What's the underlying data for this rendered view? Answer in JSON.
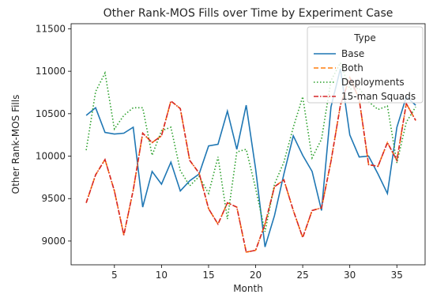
{
  "chart_data": {
    "type": "line",
    "title": "Other Rank-MOS Fills over Time by Experiment Case",
    "xlabel": "Month",
    "ylabel": "Other Rank-MOS Fills",
    "xlim": [
      0.4,
      38
    ],
    "ylim": [
      8720,
      11560
    ],
    "xticks": [
      5,
      10,
      15,
      20,
      25,
      30,
      35
    ],
    "yticks": [
      9000,
      9500,
      10000,
      10500,
      11000,
      11500
    ],
    "grid": false,
    "legend": {
      "title": "Type",
      "position": "top-right"
    },
    "x": [
      2,
      3,
      4,
      5,
      6,
      7,
      8,
      9,
      10,
      11,
      12,
      13,
      14,
      15,
      16,
      17,
      18,
      19,
      20,
      21,
      22,
      23,
      24,
      25,
      26,
      27,
      28,
      29,
      30,
      31,
      32,
      33,
      34,
      35,
      36,
      37
    ],
    "series": [
      {
        "name": "Base",
        "color": "#1f77b4",
        "dash": "solid",
        "values": [
          10480,
          10570,
          10280,
          10260,
          10270,
          10340,
          9400,
          9820,
          9670,
          9930,
          9590,
          9710,
          9790,
          10120,
          10140,
          10530,
          10080,
          10600,
          9850,
          8930,
          9300,
          9790,
          10240,
          10010,
          9820,
          9360,
          10580,
          11030,
          10250,
          9990,
          10000,
          9790,
          9560,
          10340,
          10700,
          10600
        ]
      },
      {
        "name": "Both",
        "color": "#ff7f0e",
        "dash": "dashed",
        "values": [
          9450,
          9780,
          9960,
          9590,
          9070,
          9600,
          10270,
          10160,
          10240,
          10650,
          10560,
          9950,
          9800,
          9380,
          9200,
          9450,
          9400,
          8870,
          8890,
          9200,
          9640,
          9720,
          9360,
          9040,
          9360,
          9390,
          9940,
          10600,
          10930,
          10670,
          9900,
          9880,
          10160,
          9950,
          10620,
          10420
        ]
      },
      {
        "name": "Deployments",
        "color": "#2ca02c",
        "dash": "dotted",
        "values": [
          10070,
          10760,
          10980,
          10320,
          10480,
          10570,
          10570,
          10010,
          10300,
          10340,
          9830,
          9650,
          9760,
          9560,
          9990,
          9260,
          10050,
          10080,
          9620,
          9110,
          9670,
          9930,
          10340,
          10700,
          9980,
          10200,
          10890,
          11100,
          10790,
          10800,
          10640,
          10550,
          10590,
          9920,
          10400,
          10580
        ]
      },
      {
        "name": "15-man Squads",
        "color": "#d62728",
        "dash": "dashdot",
        "values": [
          9450,
          9780,
          9960,
          9590,
          9070,
          9600,
          10270,
          10160,
          10240,
          10650,
          10560,
          9950,
          9800,
          9380,
          9200,
          9450,
          9400,
          8870,
          8890,
          9200,
          9640,
          9720,
          9360,
          9040,
          9360,
          9390,
          9940,
          10600,
          10930,
          10670,
          9900,
          9880,
          10160,
          9950,
          10620,
          10420
        ]
      }
    ]
  }
}
